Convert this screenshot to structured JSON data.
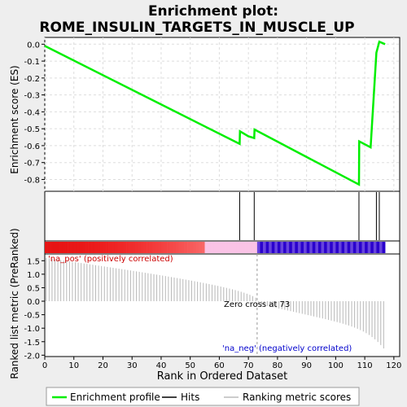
{
  "chart_data": {
    "type": "line",
    "title_line1": "Enrichment plot:",
    "title_line2": "ROME_INSULIN_TARGETS_IN_MUSCLE_UP",
    "es_panel": {
      "ylabel": "Enrichment score (ES)",
      "ylim": [
        -0.87,
        0.04
      ],
      "yticks": [
        0.0,
        -0.1,
        -0.2,
        -0.3,
        -0.4,
        -0.5,
        -0.6,
        -0.7,
        -0.8
      ],
      "ytick_labels": [
        "0.0",
        "-0.1",
        "-0.2",
        "-0.3",
        "-0.4",
        "-0.5",
        "-0.6",
        "-0.7",
        "-0.8"
      ],
      "color": "#00ee00",
      "x": [
        0,
        67,
        67.1,
        70,
        72,
        72.1,
        108,
        108.1,
        112,
        114,
        115,
        117
      ],
      "y": [
        -0.01,
        -0.59,
        -0.515,
        -0.545,
        -0.555,
        -0.505,
        -0.83,
        -0.575,
        -0.61,
        -0.05,
        0.015,
        0.0
      ]
    },
    "hits": [
      67,
      72,
      108,
      114,
      115
    ],
    "rank_metric": {
      "ylabel": "Ranked list metric (PreRanked)",
      "ylim": [
        -2.05,
        1.75
      ],
      "yticks": [
        1.5,
        1.0,
        0.5,
        0.0,
        -0.5,
        -1.0,
        -1.5,
        -2.0
      ],
      "ytick_labels": [
        "1.5",
        "1.0",
        "0.5",
        "0.0",
        "-0.5",
        "-1.0",
        "-1.5",
        "-2.0"
      ],
      "n": 117,
      "start": 1.6,
      "zero_cross": 73,
      "end": -1.9,
      "zero_label": "Zero cross at 73",
      "pos_label": "'na_pos' (positively correlated)",
      "neg_label": "'na_neg' (negatively correlated)",
      "pos_color": "#cc0000",
      "neg_color": "#0000cc"
    },
    "xlabel": "Rank in Ordered Dataset",
    "xlim": [
      0,
      122
    ],
    "xticks": [
      0,
      10,
      20,
      30,
      40,
      50,
      60,
      70,
      80,
      90,
      100,
      110,
      120
    ],
    "xtick_labels": [
      "0",
      "10",
      "20",
      "30",
      "40",
      "50",
      "60",
      "70",
      "80",
      "90",
      "100",
      "110",
      "120"
    ],
    "legend": {
      "position": "bottom",
      "items": [
        {
          "label": "Enrichment profile",
          "color": "#00ee00"
        },
        {
          "label": "Hits",
          "color": "#000000"
        },
        {
          "label": "Ranking metric scores",
          "color": "#bbbbbb"
        }
      ]
    }
  }
}
